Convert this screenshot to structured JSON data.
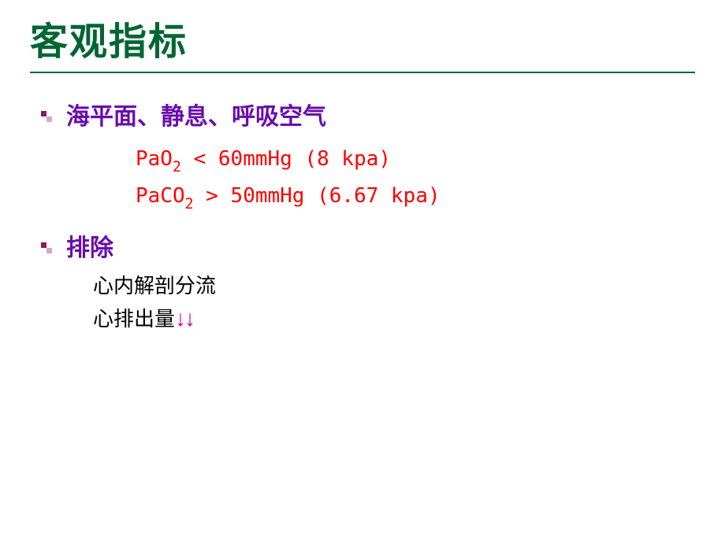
{
  "colors": {
    "title": "#006633",
    "underline": "#006633",
    "bullet_dark": "#8b1a5c",
    "bullet_light": "#d9a8c4",
    "heading": "#6a0dad",
    "formula": "#ff0000",
    "body": "#000000",
    "arrow": "#cc0099"
  },
  "fontsize": {
    "title": 48,
    "heading": 30,
    "formula": 26,
    "body": 26,
    "arrow": 28
  },
  "title": "客观指标",
  "section1": {
    "heading": "海平面、静息、呼吸空气",
    "formulas": [
      {
        "pre": "PaO",
        "sub": "2",
        "post": " < 60mmHg (8 kpa)"
      },
      {
        "pre": "PaCO",
        "sub": "2",
        "post": " > 50mmHg (6.67 kpa)"
      }
    ]
  },
  "section2": {
    "heading": "排除",
    "items": [
      {
        "text": "心内解剖分流",
        "arrows": ""
      },
      {
        "text": "心排出量",
        "arrows": "↓↓"
      }
    ]
  }
}
